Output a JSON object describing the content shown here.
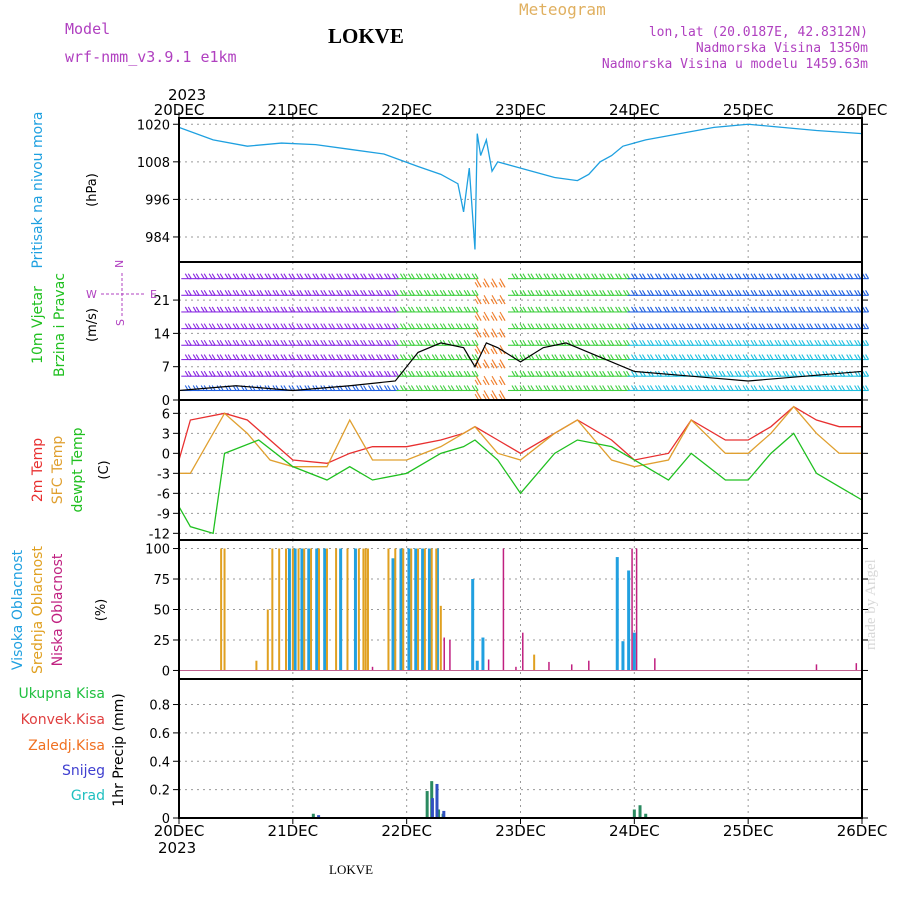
{
  "header": {
    "title": "LOKVE",
    "model_label": "Model",
    "model_name": "wrf-nmm_v3.9.1  e1km",
    "product": "Meteogram",
    "lonlat": "lon,lat (20.0187E, 42.8312N)",
    "elevation": "Nadmorska Visina 1350m",
    "model_elevation": "Nadmorska Visina u modelu 1459.63m",
    "footer": "LOKVE",
    "watermark": "made by Angel"
  },
  "time_axis": {
    "year": "2023",
    "ticks": [
      "20DEC",
      "21DEC",
      "22DEC",
      "23DEC",
      "24DEC",
      "25DEC",
      "26DEC"
    ]
  },
  "colors": {
    "title": "#000000",
    "model": "#b040c0",
    "meteogram": "#e0b060",
    "pressure": "#1ea0e0",
    "temp2m": "#e83030",
    "sfc": "#e0a030",
    "dewpt": "#20c020",
    "high_cloud": "#20a0e0",
    "mid_cloud": "#e0a020",
    "low_cloud": "#c02080",
    "kisa_total": "#20c040",
    "kisa_konv": "#e04040",
    "kisa_zaledj": "#f07020",
    "snijeg": "#4040d0",
    "grad": "#20c0c0"
  },
  "chart_data": [
    {
      "type": "line",
      "name": "pressure",
      "ylabel_1": "Pritisak na nivou mora",
      "ylabel_2": "(hPa)",
      "yticks": [
        984,
        996,
        1008,
        1020
      ],
      "ylim": [
        976,
        1022
      ],
      "x_days": [
        0,
        0.3,
        0.6,
        0.9,
        1.2,
        1.5,
        1.8,
        2.1,
        2.3,
        2.45,
        2.5,
        2.55,
        2.6,
        2.62,
        2.65,
        2.7,
        2.75,
        2.8,
        2.9,
        3.1,
        3.3,
        3.5,
        3.6,
        3.7,
        3.8,
        3.9,
        4.1,
        4.4,
        4.7,
        5.0,
        5.3,
        5.6,
        6.0
      ],
      "values": [
        1019,
        1015,
        1013,
        1014,
        1013.5,
        1012,
        1010.5,
        1006.5,
        1004,
        1001,
        992,
        1006,
        980,
        1017,
        1010,
        1015,
        1005,
        1008,
        1007,
        1005,
        1003,
        1002,
        1004,
        1008,
        1010,
        1013,
        1015,
        1017,
        1019,
        1020,
        1019,
        1018,
        1017
      ]
    },
    {
      "type": "line",
      "name": "wind",
      "ylabel_1": "10m Vjetar",
      "ylabel_2": "Brzina i Pravac",
      "ylabel_3": "(m/s)",
      "compass": "N",
      "compass_left": "W",
      "compass_right": "E",
      "compass_bottom": "S",
      "yticks": [
        0,
        7,
        14,
        21
      ],
      "ylim": [
        0,
        29
      ],
      "x_days": [
        0,
        0.5,
        1.0,
        1.5,
        1.9,
        2.1,
        2.3,
        2.5,
        2.6,
        2.7,
        2.8,
        3.0,
        3.2,
        3.4,
        3.6,
        3.8,
        4.0,
        4.5,
        5.0,
        5.5,
        6.0
      ],
      "values": [
        2,
        3,
        2,
        3,
        4,
        10,
        12,
        11,
        7,
        12,
        11,
        8,
        11,
        12,
        10,
        8,
        6,
        5,
        4,
        5,
        6
      ]
    },
    {
      "type": "line",
      "name": "temperature",
      "ylabel_1": "2m Temp",
      "ylabel_2": "SFC Temp",
      "ylabel_3": "dewpt Temp",
      "ylabel_4": "(C)",
      "yticks": [
        -12,
        -9,
        -6,
        -3,
        0,
        3,
        6
      ],
      "ylim": [
        -13,
        8
      ],
      "series": [
        {
          "name": "2m Temp",
          "x_days": [
            0,
            0.1,
            0.4,
            0.6,
            0.8,
            1.0,
            1.3,
            1.5,
            1.7,
            2.0,
            2.3,
            2.5,
            2.6,
            2.8,
            3.0,
            3.3,
            3.5,
            3.8,
            4.0,
            4.3,
            4.5,
            4.8,
            5.0,
            5.2,
            5.4,
            5.6,
            5.8,
            6.0
          ],
          "values": [
            -1,
            5,
            6,
            5,
            2,
            -1,
            -1.5,
            0,
            1,
            1,
            2,
            3,
            4,
            2,
            0,
            3,
            5,
            2,
            -1,
            0,
            5,
            2,
            2,
            4,
            7,
            5,
            4,
            4
          ]
        },
        {
          "name": "SFC Temp",
          "x_days": [
            0,
            0.1,
            0.4,
            0.6,
            0.8,
            1.0,
            1.3,
            1.5,
            1.7,
            2.0,
            2.3,
            2.5,
            2.6,
            2.8,
            3.0,
            3.3,
            3.5,
            3.8,
            4.0,
            4.3,
            4.5,
            4.8,
            5.0,
            5.2,
            5.4,
            5.6,
            5.8,
            6.0
          ],
          "values": [
            -3,
            -3,
            6,
            3,
            -1,
            -2,
            -2,
            5,
            -1,
            -1,
            1,
            3,
            4,
            0,
            -1,
            3,
            5,
            -1,
            -2,
            -1,
            5,
            0,
            0,
            3,
            7,
            3,
            0,
            0
          ]
        },
        {
          "name": "dewpt Temp",
          "x_days": [
            0,
            0.1,
            0.3,
            0.4,
            0.7,
            1.0,
            1.3,
            1.5,
            1.7,
            2.0,
            2.3,
            2.5,
            2.6,
            2.8,
            3.0,
            3.3,
            3.5,
            3.8,
            4.0,
            4.3,
            4.5,
            4.8,
            5.0,
            5.2,
            5.4,
            5.6,
            5.8,
            6.0
          ],
          "values": [
            -8,
            -11,
            -12,
            0,
            2,
            -2,
            -4,
            -2,
            -4,
            -3,
            0,
            1,
            2,
            -1,
            -6,
            0,
            2,
            1,
            -1,
            -4,
            0,
            -4,
            -4,
            0,
            3,
            -3,
            -5,
            -7
          ]
        }
      ]
    },
    {
      "type": "bar",
      "name": "cloud",
      "ylabel_1": "Visoka Oblacnost",
      "ylabel_2": "Srednja Oblacnost",
      "ylabel_3": "Niska Oblacnost",
      "ylabel_4": "(%)",
      "yticks": [
        0,
        25,
        50,
        75,
        100
      ],
      "ylim": [
        -7,
        107
      ],
      "series": [
        {
          "name": "Visoka Oblacnost",
          "x_days": [
            0.97,
            1.02,
            1.08,
            1.14,
            1.21,
            1.28,
            1.42,
            1.55,
            1.88,
            1.95,
            2.02,
            2.08,
            2.14,
            2.2,
            2.27,
            2.58,
            2.62,
            2.67,
            3.85,
            3.9,
            3.95,
            4.0
          ],
          "values": [
            100,
            100,
            100,
            100,
            100,
            100,
            100,
            100,
            92,
            100,
            100,
            100,
            100,
            100,
            100,
            75,
            8,
            27,
            93,
            24,
            82,
            31
          ]
        },
        {
          "name": "Srednja Oblacnost",
          "x_days": [
            0.37,
            0.4,
            0.68,
            0.78,
            0.82,
            0.88,
            0.94,
            1.0,
            1.05,
            1.1,
            1.16,
            1.23,
            1.3,
            1.38,
            1.48,
            1.58,
            1.62,
            1.64,
            1.66,
            1.84,
            1.9,
            1.97,
            2.04,
            2.1,
            2.16,
            2.22,
            2.26,
            2.3,
            3.12
          ],
          "values": [
            100,
            100,
            8,
            50,
            100,
            100,
            100,
            100,
            100,
            100,
            100,
            100,
            100,
            100,
            100,
            100,
            100,
            100,
            100,
            100,
            100,
            100,
            100,
            100,
            100,
            100,
            100,
            53,
            13
          ]
        },
        {
          "name": "Niska Oblacnost",
          "x_days": [
            1.7,
            2.33,
            2.38,
            2.72,
            2.85,
            2.96,
            3.02,
            3.25,
            3.45,
            3.6,
            3.98,
            4.02,
            4.18,
            5.6,
            5.95
          ],
          "values": [
            3,
            27,
            25,
            9,
            100,
            3,
            31,
            7,
            5,
            8,
            100,
            100,
            10,
            5,
            6
          ]
        }
      ]
    },
    {
      "type": "bar",
      "name": "precip",
      "ylabel_1": "1hr Precip (mm)",
      "legend": [
        "Ukupna Kisa",
        "Konvek.Kisa",
        "Zaledj.Kisa",
        "Snijeg",
        "Grad"
      ],
      "yticks": [
        0,
        0.2,
        0.4,
        0.6,
        0.8
      ],
      "ylim": [
        0,
        0.98
      ],
      "series": [
        {
          "name": "Ukupna Kisa",
          "x_days": [
            1.18,
            2.18,
            2.22,
            2.28,
            2.32,
            4.0,
            4.05,
            4.1
          ],
          "values": [
            0.03,
            0.19,
            0.26,
            0.06,
            0.03,
            0.06,
            0.09,
            0.03
          ]
        },
        {
          "name": "Snijeg",
          "x_days": [
            1.2,
            2.2,
            2.24,
            2.3
          ],
          "values": [
            0.02,
            0.14,
            0.24,
            0.05
          ]
        }
      ]
    }
  ]
}
